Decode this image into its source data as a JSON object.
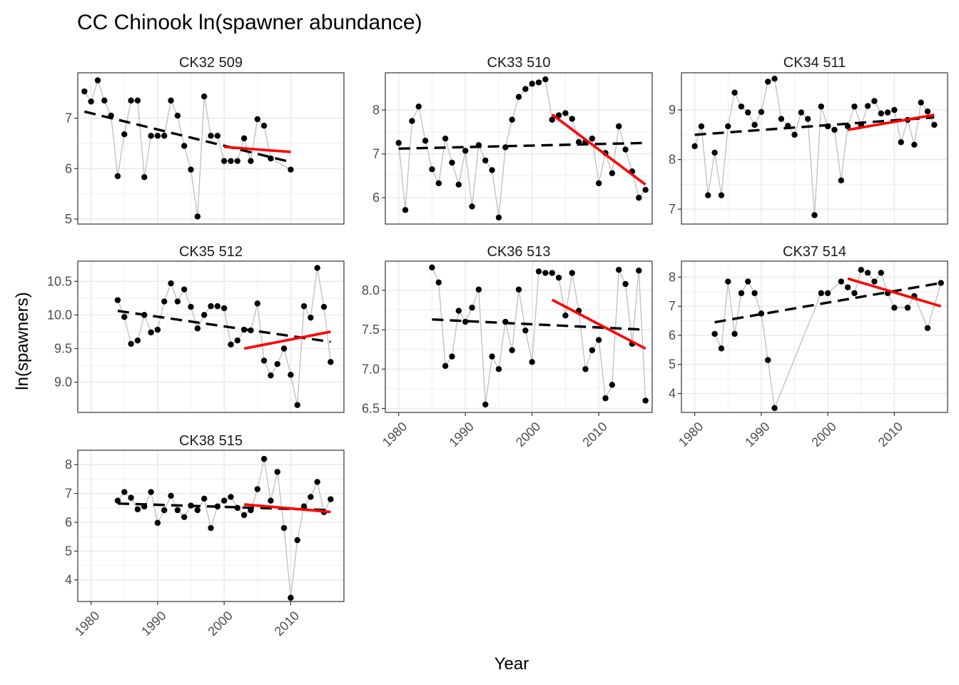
{
  "chart_data": {
    "type": "line",
    "title": "CC Chinook ln(spawner abundance)",
    "xlabel": "Year",
    "ylabel": "ln(spawners)",
    "x_ticks": [
      1980,
      1990,
      2000,
      2010
    ],
    "xlim": [
      1978,
      2018
    ],
    "colors": {
      "observed_line": "#bebebe",
      "points": "#000000",
      "long_term_trend": "#000000",
      "recent_trend": "#ff0000",
      "grid": "#ebebeb",
      "panel_border": "#333333"
    },
    "panels": [
      {
        "label": "CK32 509",
        "ylim": [
          4.9,
          7.9
        ],
        "y_ticks": [
          5,
          6,
          7
        ],
        "points": [
          [
            1979,
            7.53
          ],
          [
            1980,
            7.33
          ],
          [
            1981,
            7.75
          ],
          [
            1982,
            7.35
          ],
          [
            1983,
            7.05
          ],
          [
            1984,
            5.85
          ],
          [
            1985,
            6.68
          ],
          [
            1986,
            7.35
          ],
          [
            1987,
            7.35
          ],
          [
            1988,
            5.83
          ],
          [
            1989,
            6.65
          ],
          [
            1990,
            6.65
          ],
          [
            1991,
            6.65
          ],
          [
            1992,
            7.35
          ],
          [
            1993,
            7.05
          ],
          [
            1994,
            6.45
          ],
          [
            1995,
            5.98
          ],
          [
            1996,
            5.05
          ],
          [
            1997,
            7.43
          ],
          [
            1998,
            6.65
          ],
          [
            1999,
            6.65
          ],
          [
            2000,
            6.15
          ],
          [
            2001,
            6.15
          ],
          [
            2002,
            6.15
          ],
          [
            2003,
            6.6
          ],
          [
            2004,
            6.15
          ],
          [
            2005,
            6.98
          ],
          [
            2006,
            6.85
          ],
          [
            2007,
            6.2
          ],
          [
            2010,
            5.98
          ]
        ],
        "trend_long": [
          [
            1979,
            7.13
          ],
          [
            2010,
            6.13
          ]
        ],
        "trend_recent": [
          [
            2000,
            6.43
          ],
          [
            2010,
            6.33
          ]
        ]
      },
      {
        "label": "CK33 510",
        "ylim": [
          5.4,
          8.85
        ],
        "y_ticks": [
          6,
          7,
          8
        ],
        "points": [
          [
            1980,
            7.25
          ],
          [
            1981,
            5.72
          ],
          [
            1982,
            7.75
          ],
          [
            1983,
            8.08
          ],
          [
            1984,
            7.3
          ],
          [
            1985,
            6.65
          ],
          [
            1986,
            6.33
          ],
          [
            1987,
            7.35
          ],
          [
            1988,
            6.8
          ],
          [
            1989,
            6.3
          ],
          [
            1990,
            7.07
          ],
          [
            1991,
            5.8
          ],
          [
            1992,
            7.2
          ],
          [
            1993,
            6.85
          ],
          [
            1994,
            6.63
          ],
          [
            1995,
            5.55
          ],
          [
            1996,
            7.15
          ],
          [
            1997,
            7.78
          ],
          [
            1998,
            8.3
          ],
          [
            1999,
            8.48
          ],
          [
            2000,
            8.6
          ],
          [
            2001,
            8.63
          ],
          [
            2002,
            8.7
          ],
          [
            2003,
            7.78
          ],
          [
            2004,
            7.88
          ],
          [
            2005,
            7.93
          ],
          [
            2006,
            7.8
          ],
          [
            2007,
            7.27
          ],
          [
            2008,
            7.27
          ],
          [
            2009,
            7.35
          ],
          [
            2010,
            6.33
          ],
          [
            2011,
            7.02
          ],
          [
            2012,
            6.56
          ],
          [
            2013,
            7.63
          ],
          [
            2014,
            7.1
          ],
          [
            2015,
            6.6
          ],
          [
            2016,
            6.0
          ],
          [
            2017,
            6.18
          ]
        ],
        "trend_long": [
          [
            1980,
            7.12
          ],
          [
            2017,
            7.25
          ]
        ],
        "trend_recent": [
          [
            2003,
            7.9
          ],
          [
            2017,
            6.3
          ]
        ]
      },
      {
        "label": "CK34 511",
        "ylim": [
          6.7,
          9.75
        ],
        "y_ticks": [
          7,
          8,
          9
        ],
        "points": [
          [
            1980,
            8.27
          ],
          [
            1981,
            8.67
          ],
          [
            1982,
            7.28
          ],
          [
            1983,
            8.14
          ],
          [
            1984,
            7.28
          ],
          [
            1985,
            8.67
          ],
          [
            1986,
            9.35
          ],
          [
            1987,
            9.07
          ],
          [
            1988,
            8.95
          ],
          [
            1989,
            8.7
          ],
          [
            1990,
            8.96
          ],
          [
            1991,
            9.57
          ],
          [
            1992,
            9.63
          ],
          [
            1993,
            8.82
          ],
          [
            1994,
            8.68
          ],
          [
            1995,
            8.5
          ],
          [
            1996,
            8.95
          ],
          [
            1997,
            8.82
          ],
          [
            1998,
            6.88
          ],
          [
            1999,
            9.07
          ],
          [
            2000,
            8.67
          ],
          [
            2001,
            8.6
          ],
          [
            2002,
            7.58
          ],
          [
            2003,
            8.67
          ],
          [
            2004,
            9.07
          ],
          [
            2005,
            8.7
          ],
          [
            2006,
            9.08
          ],
          [
            2007,
            9.18
          ],
          [
            2008,
            8.93
          ],
          [
            2009,
            8.95
          ],
          [
            2010,
            9.0
          ],
          [
            2011,
            8.35
          ],
          [
            2012,
            8.8
          ],
          [
            2013,
            8.3
          ],
          [
            2014,
            9.15
          ],
          [
            2015,
            8.97
          ],
          [
            2016,
            8.7
          ]
        ],
        "trend_long": [
          [
            1980,
            8.5
          ],
          [
            2016,
            8.85
          ]
        ],
        "trend_recent": [
          [
            2003,
            8.6
          ],
          [
            2016,
            8.9
          ]
        ]
      },
      {
        "label": "CK35 512",
        "ylim": [
          8.55,
          10.8
        ],
        "y_ticks": [
          9.0,
          9.5,
          10.0,
          10.5
        ],
        "points": [
          [
            1984,
            10.22
          ],
          [
            1985,
            9.97
          ],
          [
            1986,
            9.57
          ],
          [
            1987,
            9.62
          ],
          [
            1988,
            10.0
          ],
          [
            1989,
            9.74
          ],
          [
            1990,
            9.78
          ],
          [
            1991,
            10.2
          ],
          [
            1992,
            10.47
          ],
          [
            1993,
            10.2
          ],
          [
            1994,
            10.38
          ],
          [
            1995,
            10.12
          ],
          [
            1996,
            9.8
          ],
          [
            1997,
            10.0
          ],
          [
            1998,
            10.13
          ],
          [
            1999,
            10.13
          ],
          [
            2000,
            10.1
          ],
          [
            2001,
            9.56
          ],
          [
            2002,
            9.62
          ],
          [
            2003,
            9.78
          ],
          [
            2004,
            9.77
          ],
          [
            2005,
            10.17
          ],
          [
            2006,
            9.32
          ],
          [
            2007,
            9.1
          ],
          [
            2008,
            9.27
          ],
          [
            2009,
            9.5
          ],
          [
            2010,
            9.11
          ],
          [
            2011,
            8.66
          ],
          [
            2012,
            10.13
          ],
          [
            2013,
            9.96
          ],
          [
            2014,
            10.7
          ],
          [
            2015,
            10.12
          ],
          [
            2016,
            9.3
          ]
        ],
        "trend_long": [
          [
            1984,
            10.06
          ],
          [
            2016,
            9.6
          ]
        ],
        "trend_recent": [
          [
            2003,
            9.5
          ],
          [
            2016,
            9.75
          ]
        ]
      },
      {
        "label": "CK36 513",
        "ylim": [
          6.45,
          8.37
        ],
        "y_ticks": [
          6.5,
          7.0,
          7.5,
          8.0
        ],
        "points": [
          [
            1985,
            8.29
          ],
          [
            1986,
            8.1
          ],
          [
            1987,
            7.04
          ],
          [
            1988,
            7.16
          ],
          [
            1989,
            7.74
          ],
          [
            1990,
            7.6
          ],
          [
            1991,
            7.78
          ],
          [
            1992,
            8.01
          ],
          [
            1993,
            6.55
          ],
          [
            1994,
            7.16
          ],
          [
            1995,
            7.0
          ],
          [
            1996,
            7.6
          ],
          [
            1997,
            7.24
          ],
          [
            1998,
            8.01
          ],
          [
            1999,
            7.49
          ],
          [
            2000,
            7.09
          ],
          [
            2001,
            8.24
          ],
          [
            2002,
            8.22
          ],
          [
            2003,
            8.22
          ],
          [
            2004,
            8.16
          ],
          [
            2005,
            7.68
          ],
          [
            2006,
            8.22
          ],
          [
            2007,
            7.74
          ],
          [
            2008,
            7.0
          ],
          [
            2009,
            7.24
          ],
          [
            2010,
            7.37
          ],
          [
            2011,
            6.63
          ],
          [
            2012,
            6.8
          ],
          [
            2013,
            8.26
          ],
          [
            2014,
            8.08
          ],
          [
            2015,
            7.32
          ],
          [
            2016,
            8.25
          ],
          [
            2017,
            6.6
          ]
        ],
        "trend_long": [
          [
            1985,
            7.63
          ],
          [
            2017,
            7.5
          ]
        ],
        "trend_recent": [
          [
            2003,
            7.88
          ],
          [
            2017,
            7.26
          ]
        ]
      },
      {
        "label": "CK37 514",
        "ylim": [
          3.35,
          8.55
        ],
        "y_ticks": [
          4,
          5,
          6,
          7,
          8
        ],
        "points": [
          [
            1983,
            6.05
          ],
          [
            1984,
            5.55
          ],
          [
            1985,
            7.85
          ],
          [
            1986,
            6.05
          ],
          [
            1987,
            7.45
          ],
          [
            1988,
            7.85
          ],
          [
            1989,
            7.45
          ],
          [
            1990,
            6.75
          ],
          [
            1991,
            5.15
          ],
          [
            1992,
            3.5
          ],
          [
            1999,
            7.45
          ],
          [
            2000,
            7.45
          ],
          [
            2002,
            7.85
          ],
          [
            2003,
            7.65
          ],
          [
            2004,
            7.45
          ],
          [
            2005,
            8.25
          ],
          [
            2006,
            8.15
          ],
          [
            2007,
            7.85
          ],
          [
            2008,
            8.15
          ],
          [
            2009,
            7.45
          ],
          [
            2010,
            6.95
          ],
          [
            2012,
            6.95
          ],
          [
            2013,
            7.35
          ],
          [
            2015,
            6.25
          ],
          [
            2017,
            7.8
          ]
        ],
        "trend_long": [
          [
            1983,
            6.45
          ],
          [
            2017,
            7.8
          ]
        ],
        "trend_recent": [
          [
            2003,
            7.95
          ],
          [
            2017,
            7.0
          ]
        ]
      },
      {
        "label": "CK38 515",
        "ylim": [
          3.25,
          8.5
        ],
        "y_ticks": [
          4,
          5,
          6,
          7,
          8
        ],
        "points": [
          [
            1984,
            6.75
          ],
          [
            1985,
            7.05
          ],
          [
            1986,
            6.85
          ],
          [
            1987,
            6.45
          ],
          [
            1988,
            6.55
          ],
          [
            1989,
            7.05
          ],
          [
            1990,
            5.98
          ],
          [
            1991,
            6.42
          ],
          [
            1992,
            6.92
          ],
          [
            1993,
            6.42
          ],
          [
            1994,
            6.18
          ],
          [
            1995,
            6.58
          ],
          [
            1996,
            6.42
          ],
          [
            1997,
            6.82
          ],
          [
            1998,
            5.8
          ],
          [
            1999,
            6.55
          ],
          [
            2000,
            6.75
          ],
          [
            2001,
            6.88
          ],
          [
            2002,
            6.5
          ],
          [
            2003,
            6.25
          ],
          [
            2004,
            6.42
          ],
          [
            2005,
            7.15
          ],
          [
            2006,
            8.2
          ],
          [
            2007,
            6.75
          ],
          [
            2008,
            7.75
          ],
          [
            2009,
            5.8
          ],
          [
            2010,
            3.38
          ],
          [
            2011,
            5.38
          ],
          [
            2012,
            6.55
          ],
          [
            2013,
            6.88
          ],
          [
            2014,
            7.4
          ],
          [
            2015,
            6.35
          ],
          [
            2016,
            6.8
          ]
        ],
        "trend_long": [
          [
            1984,
            6.65
          ],
          [
            2016,
            6.42
          ]
        ],
        "trend_recent": [
          [
            2003,
            6.62
          ],
          [
            2016,
            6.36
          ]
        ]
      }
    ]
  }
}
